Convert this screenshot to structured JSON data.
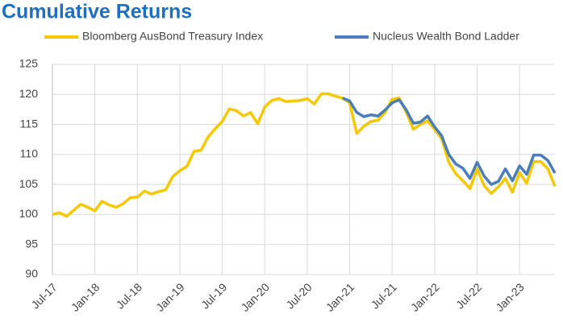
{
  "chart_data": {
    "type": "line",
    "title": "Cumulative Returns",
    "categories": [
      "Jul-17",
      null,
      null,
      null,
      null,
      null,
      "Jan-18",
      null,
      null,
      null,
      null,
      null,
      "Jul-18",
      null,
      null,
      null,
      null,
      null,
      "Jan-19",
      null,
      null,
      null,
      null,
      null,
      "Jul-19",
      null,
      null,
      null,
      null,
      null,
      "Jan-20",
      null,
      null,
      null,
      null,
      null,
      "Jul-20",
      null,
      null,
      null,
      null,
      null,
      "Jan-21",
      null,
      null,
      null,
      null,
      null,
      "Jul-21",
      null,
      null,
      null,
      null,
      null,
      "Jan-22",
      null,
      null,
      null,
      null,
      null,
      "Jul-22",
      null,
      null,
      null,
      null,
      null,
      "Jan-23",
      null,
      null,
      null,
      null,
      null
    ],
    "series": [
      {
        "name": "Bloomberg AusBond Treasury Index",
        "color": "#f5c800",
        "values": [
          100.0,
          100.3,
          99.7,
          100.7,
          101.7,
          101.2,
          100.6,
          102.2,
          101.6,
          101.2,
          101.8,
          102.8,
          102.9,
          103.9,
          103.4,
          103.8,
          104.1,
          106.3,
          107.3,
          108.0,
          110.5,
          110.7,
          112.9,
          114.3,
          115.5,
          117.6,
          117.3,
          116.4,
          117.0,
          115.1,
          117.9,
          119.0,
          119.3,
          118.8,
          118.9,
          119.0,
          119.3,
          118.4,
          120.1,
          120.1,
          119.7,
          119.4,
          118.6,
          113.5,
          114.7,
          115.5,
          115.7,
          117.0,
          119.2,
          119.4,
          117.0,
          114.2,
          115.0,
          115.6,
          114.2,
          112.6,
          108.7,
          106.8,
          105.6,
          104.3,
          107.6,
          104.8,
          103.5,
          104.6,
          106.0,
          103.7,
          107.0,
          105.2,
          108.8,
          108.8,
          107.6,
          104.7
        ]
      },
      {
        "name": "Nucleus Wealth Bond Ladder",
        "color": "#4a7ebb",
        "values": [
          null,
          null,
          null,
          null,
          null,
          null,
          null,
          null,
          null,
          null,
          null,
          null,
          null,
          null,
          null,
          null,
          null,
          null,
          null,
          null,
          null,
          null,
          null,
          null,
          null,
          null,
          null,
          null,
          null,
          null,
          null,
          null,
          null,
          null,
          null,
          null,
          null,
          null,
          null,
          null,
          null,
          119.4,
          118.9,
          117.0,
          116.3,
          116.6,
          116.4,
          117.4,
          118.6,
          119.1,
          117.4,
          115.2,
          115.4,
          116.4,
          114.6,
          113.1,
          110.0,
          108.4,
          107.7,
          106.0,
          108.7,
          106.4,
          105.0,
          105.5,
          107.6,
          105.6,
          108.1,
          106.7,
          109.9,
          109.9,
          109.0,
          106.9
        ]
      }
    ],
    "ylim": [
      90,
      125
    ],
    "yticks": [
      90,
      95,
      100,
      105,
      110,
      115,
      120,
      125
    ],
    "grid": true
  }
}
